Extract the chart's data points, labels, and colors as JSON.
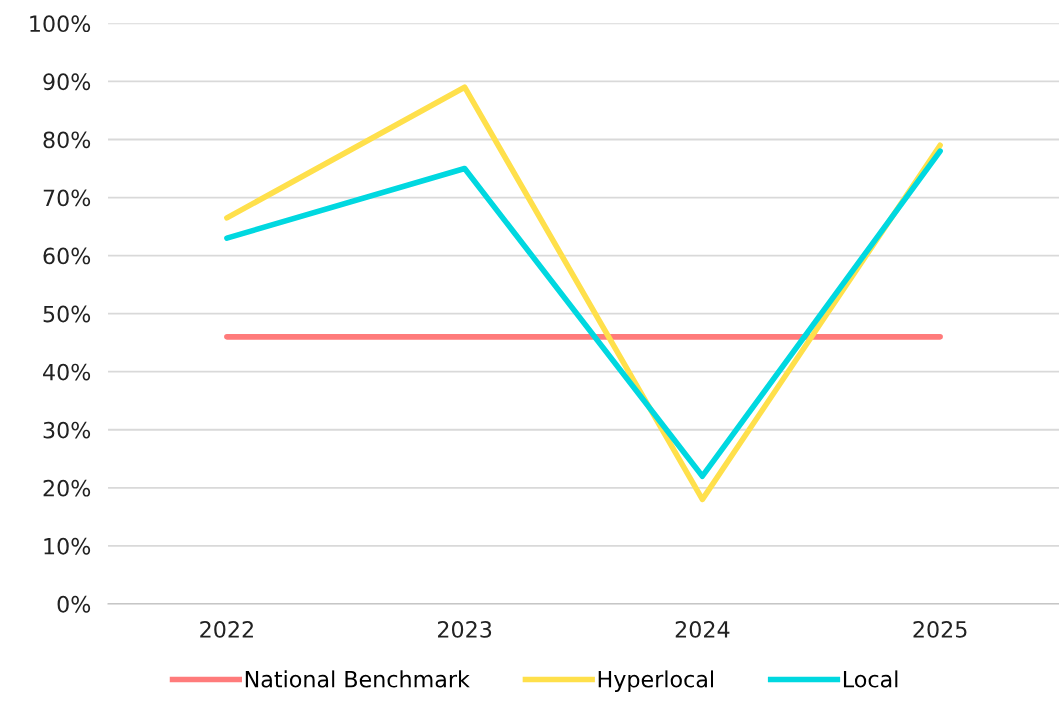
{
  "chart_data": {
    "type": "line",
    "categories": [
      "2022",
      "2023",
      "2024",
      "2025"
    ],
    "series": [
      {
        "name": "National Benchmark",
        "color": "#ff7b7b",
        "values": [
          46,
          46,
          46,
          46
        ]
      },
      {
        "name": "Hyperlocal",
        "color": "#ffe04b",
        "values": [
          66.5,
          89,
          18,
          79
        ]
      },
      {
        "name": "Local",
        "color": "#00d8e0",
        "values": [
          63,
          75,
          22,
          78
        ]
      }
    ],
    "ylim": [
      0,
      100
    ],
    "yticks": [
      {
        "value": 0,
        "label": "0%"
      },
      {
        "value": 10,
        "label": "10%"
      },
      {
        "value": 20,
        "label": "20%"
      },
      {
        "value": 30,
        "label": "30%"
      },
      {
        "value": 40,
        "label": "40%"
      },
      {
        "value": 50,
        "label": "50%"
      },
      {
        "value": 60,
        "label": "60%"
      },
      {
        "value": 70,
        "label": "70%"
      },
      {
        "value": 80,
        "label": "80%"
      },
      {
        "value": 90,
        "label": "90%"
      },
      {
        "value": 100,
        "label": "100%"
      }
    ],
    "grid": "y",
    "legend": "bottom",
    "marker": "none",
    "line_style": "solid"
  }
}
